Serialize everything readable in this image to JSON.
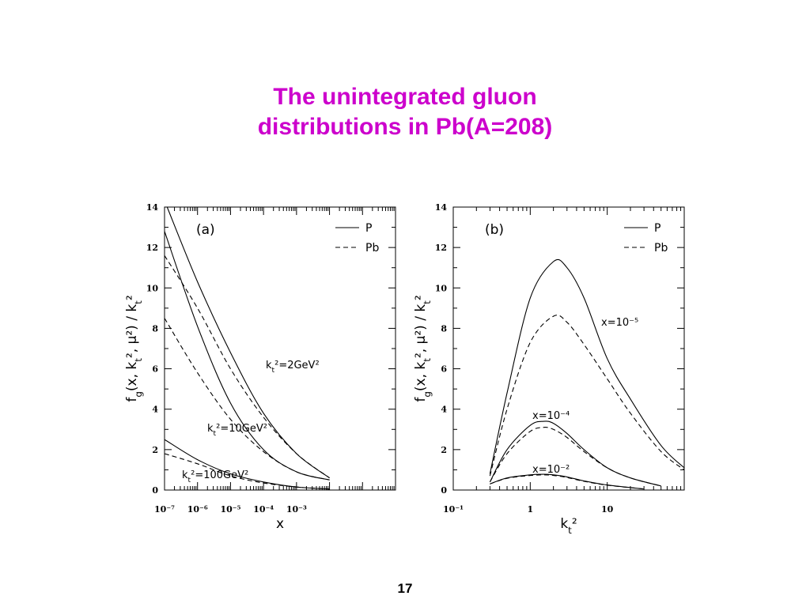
{
  "slide": {
    "title_line1": "The unintegrated gluon",
    "title_line2": "distributions in Pb(A=208)",
    "page_number": "17"
  },
  "chart_data": [
    {
      "type": "line",
      "panel_label": "(a)",
      "xscale": "log",
      "xlim": [
        1e-07,
        1
      ],
      "ylim": [
        0,
        14
      ],
      "xlabel": "x",
      "ylabel": "f_g(x, k_t², μ²) / k_t²",
      "xtick_labels": [
        "10⁻⁷",
        "10⁻⁶",
        "10⁻⁵",
        "10⁻⁴",
        "10⁻³"
      ],
      "ytick_labels": [
        "0",
        "2",
        "4",
        "6",
        "8",
        "10",
        "12",
        "14"
      ],
      "legend": {
        "placement": "top-right",
        "entries": [
          {
            "label": "P",
            "style": "solid"
          },
          {
            "label": "Pb",
            "style": "dashed"
          }
        ]
      },
      "annotations": [
        "k_t²=2GeV²",
        "k_t²=10GeV²",
        "k_t²=100GeV²"
      ],
      "series": [
        {
          "name": "P",
          "group": "k_t²=2GeV²",
          "style": "solid",
          "x": [
            1.2e-07,
            1e-06,
            1e-05,
            0.0001,
            0.001,
            0.01
          ],
          "y": [
            14.0,
            10.3,
            6.8,
            3.8,
            1.8,
            0.6
          ]
        },
        {
          "name": "Pb",
          "group": "k_t²=2GeV²",
          "style": "dashed",
          "x": [
            1e-07,
            1e-06,
            1e-05,
            0.0001,
            0.001,
            0.01
          ],
          "y": [
            11.6,
            9.0,
            6.0,
            3.6,
            1.8,
            0.6
          ]
        },
        {
          "name": "P",
          "group": "k_t²=10GeV²",
          "style": "solid",
          "x": [
            1e-07,
            1e-06,
            1e-05,
            0.0001,
            0.001,
            0.01
          ],
          "y": [
            12.8,
            8.1,
            4.3,
            2.0,
            0.9,
            0.5
          ]
        },
        {
          "name": "Pb",
          "group": "k_t²=10GeV²",
          "style": "dashed",
          "x": [
            1e-07,
            1e-06,
            1e-05,
            0.0001,
            0.001,
            0.01
          ],
          "y": [
            8.5,
            5.8,
            3.5,
            1.9,
            0.9,
            0.5
          ]
        },
        {
          "name": "P",
          "group": "k_t²=100GeV²",
          "style": "solid",
          "x": [
            1e-07,
            1e-06,
            1e-05,
            0.0001,
            0.001,
            0.01
          ],
          "y": [
            2.5,
            1.5,
            0.8,
            0.4,
            0.15,
            0.05
          ]
        },
        {
          "name": "Pb",
          "group": "k_t²=100GeV²",
          "style": "dashed",
          "x": [
            1e-07,
            1e-06,
            1e-05,
            0.0001,
            0.001,
            0.01
          ],
          "y": [
            1.8,
            1.3,
            0.7,
            0.35,
            0.15,
            0.05
          ]
        }
      ]
    },
    {
      "type": "line",
      "panel_label": "(b)",
      "xscale": "log",
      "xlim": [
        0.1,
        100
      ],
      "ylim": [
        0,
        14
      ],
      "xlabel": "k_t²",
      "ylabel": "f_g(x, k_t², μ²) / k_t²",
      "xtick_labels": [
        "10⁻¹",
        "1",
        "10"
      ],
      "ytick_labels": [
        "0",
        "2",
        "4",
        "6",
        "8",
        "10",
        "12",
        "14"
      ],
      "legend": {
        "placement": "top-right",
        "entries": [
          {
            "label": "P",
            "style": "solid"
          },
          {
            "label": "Pb",
            "style": "dashed"
          }
        ]
      },
      "annotations": [
        "x=10⁻⁵",
        "x=10⁻⁴",
        "x=10⁻²"
      ],
      "series": [
        {
          "name": "P",
          "group": "x=10⁻⁵",
          "style": "solid",
          "x": [
            0.3,
            0.5,
            1,
            2,
            3,
            5,
            10,
            20,
            50,
            100
          ],
          "y": [
            0.8,
            4.8,
            9.5,
            11.3,
            11.0,
            9.5,
            6.5,
            4.5,
            2.2,
            1.1
          ]
        },
        {
          "name": "Pb",
          "group": "x=10⁻⁵",
          "style": "dashed",
          "x": [
            0.3,
            0.5,
            1,
            2,
            3,
            5,
            10,
            20,
            50,
            100
          ],
          "y": [
            0.7,
            4.0,
            7.3,
            8.6,
            8.3,
            7.2,
            5.5,
            3.8,
            1.9,
            1.0
          ]
        },
        {
          "name": "P",
          "group": "x=10⁻⁴",
          "style": "solid",
          "x": [
            0.3,
            0.5,
            1,
            1.5,
            2,
            3,
            5,
            10,
            20,
            50
          ],
          "y": [
            0.4,
            2.0,
            3.2,
            3.4,
            3.3,
            2.8,
            2.0,
            1.1,
            0.6,
            0.2
          ]
        },
        {
          "name": "Pb",
          "group": "x=10⁻⁴",
          "style": "dashed",
          "x": [
            0.3,
            0.5,
            1,
            1.5,
            2,
            3,
            5,
            10,
            20,
            50
          ],
          "y": [
            0.4,
            1.8,
            2.9,
            3.1,
            3.0,
            2.6,
            1.9,
            1.1,
            0.6,
            0.2
          ]
        },
        {
          "name": "P",
          "group": "x=10⁻²",
          "style": "solid",
          "x": [
            0.3,
            0.5,
            1,
            1.5,
            2,
            3,
            5,
            10,
            30
          ],
          "y": [
            0.3,
            0.6,
            0.75,
            0.78,
            0.75,
            0.65,
            0.45,
            0.25,
            0.05
          ]
        },
        {
          "name": "Pb",
          "group": "x=10⁻²",
          "style": "dashed",
          "x": [
            0.3,
            0.5,
            1,
            1.5,
            2,
            3,
            5,
            10,
            30
          ],
          "y": [
            0.3,
            0.58,
            0.72,
            0.75,
            0.72,
            0.62,
            0.43,
            0.24,
            0.05
          ]
        }
      ]
    }
  ]
}
